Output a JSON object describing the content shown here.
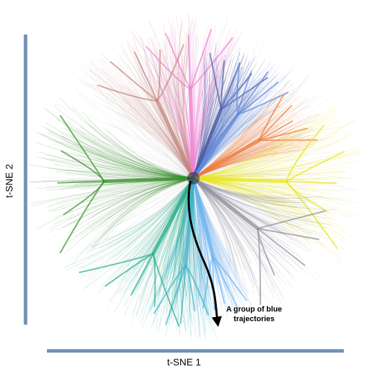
{
  "axes": {
    "x_label": "t-SNE 1",
    "y_label": "t-SNE 2",
    "axis_color": "#6f8fb5"
  },
  "annotation": {
    "line1": "A group of blue",
    "line2": "trajectories"
  },
  "clusters": [
    {
      "name": "pink",
      "color": "#ee82d4"
    },
    {
      "name": "salmon",
      "color": "#c4857f"
    },
    {
      "name": "dark-blue",
      "color": "#4c5aa3"
    },
    {
      "name": "blue",
      "color": "#5f88d8"
    },
    {
      "name": "orange",
      "color": "#ef7b3a"
    },
    {
      "name": "yellow",
      "color": "#e8e61b"
    },
    {
      "name": "grey",
      "color": "#8e8e9e"
    },
    {
      "name": "light-blue",
      "color": "#6fb3ef"
    },
    {
      "name": "cyan",
      "color": "#3fb3c6"
    },
    {
      "name": "teal",
      "color": "#27ad8a"
    },
    {
      "name": "green",
      "color": "#3a8e2e"
    }
  ]
}
